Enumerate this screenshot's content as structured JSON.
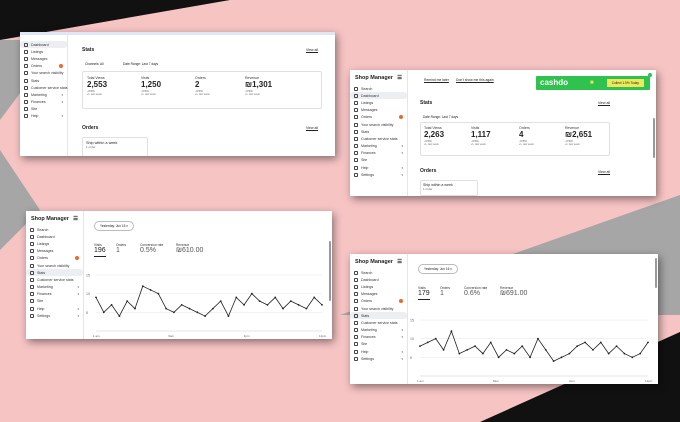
{
  "colors": {
    "bg_pink": "#f7c4c4",
    "bg_dark": "#111111",
    "bg_gray": "#a6a6a6",
    "banner_green": "#2fc24f",
    "banner_yellow": "#f0e85a",
    "badge_orange": "#e96a2a"
  },
  "s1": {
    "nav": [
      "Dashboard",
      "Listings",
      "Messages",
      "Orders",
      "Your search visibility",
      "Stats",
      "Customer service stats",
      "Marketing",
      "Finances",
      "Site",
      "Help"
    ],
    "stats_title": "Stats",
    "view_all": "View all",
    "channels": "Channels: All",
    "date_range": "Date Range: Last 7 days",
    "cards": [
      {
        "label": "Total Views",
        "value": "2,553",
        "pct": "-3.5%",
        "sub": "vs. last week"
      },
      {
        "label": "Visits",
        "value": "1,250",
        "pct": "-3.5%",
        "sub": "vs. last week"
      },
      {
        "label": "Orders",
        "value": "2",
        "pct": "-3.5%",
        "sub": "vs. last week"
      },
      {
        "label": "Revenue",
        "value": "₪1,301",
        "pct": "-3.5%",
        "sub": "vs. last week"
      }
    ],
    "orders_title": "Orders",
    "orders_view_all": "View all",
    "ship_title": "Ship within a week",
    "ship_sub": "1 order"
  },
  "s2": {
    "app_title": "Shop Manager",
    "nav": [
      "Search",
      "Dashboard",
      "Listings",
      "Messages",
      "Orders",
      "Your search visibility",
      "Stats",
      "Customer service stats",
      "Marketing",
      "Finances",
      "Site",
      "Help",
      "Settings"
    ],
    "remind": "Remind me later",
    "dont_show": "Don't show me this again",
    "banner_brand": "cashdo",
    "banner_btn": "Collect 1.5% Today",
    "stats_title": "Stats",
    "view_all": "View all",
    "date_range": "Date Range: Last 7 days",
    "cards": [
      {
        "label": "Total Views",
        "value": "2,263",
        "pct": "-3.5%",
        "sub": "vs. last week"
      },
      {
        "label": "Visits",
        "value": "1,117",
        "pct": "-3.5%",
        "sub": "vs. last week"
      },
      {
        "label": "Orders",
        "value": "4",
        "pct": "-3.5%",
        "sub": "vs. last week"
      },
      {
        "label": "Revenue",
        "value": "₪2,651",
        "pct": "-3.5%",
        "sub": "vs. last week"
      }
    ],
    "orders_title": "Orders",
    "orders_view_all": "View all",
    "ship_title": "Ship within a week",
    "ship_sub": "1 order"
  },
  "s3": {
    "app_title": "Shop Manager",
    "nav": [
      "Search",
      "Dashboard",
      "Listings",
      "Messages",
      "Orders",
      "Your search visibility",
      "Stats",
      "Customer service stats",
      "Marketing",
      "Finances",
      "Site",
      "Help",
      "Settings"
    ],
    "date_select": "Yesterday: Jun 15",
    "metrics": [
      {
        "label": "Visits",
        "value": "196"
      },
      {
        "label": "Orders",
        "value": "1"
      },
      {
        "label": "Conversion rate",
        "value": "0.5%"
      },
      {
        "label": "Revenue",
        "value": "₪610.00"
      }
    ],
    "chart_data": {
      "type": "line",
      "y_ticks": [
        "15",
        "10",
        "5"
      ],
      "x_ticks": [
        "1 am",
        "",
        "6am",
        "",
        "2pm",
        "",
        "11pm"
      ],
      "ylim": [
        0,
        15
      ],
      "values": [
        9,
        5,
        7,
        4,
        8,
        6,
        12,
        11,
        10,
        6,
        5,
        7,
        6,
        5,
        4,
        6,
        8,
        4,
        9,
        7,
        10,
        8,
        7,
        9,
        6,
        8,
        7,
        6,
        9,
        7
      ]
    }
  },
  "s4": {
    "app_title": "Shop Manager",
    "nav": [
      "Search",
      "Dashboard",
      "Listings",
      "Messages",
      "Orders",
      "Your search visibility",
      "Stats",
      "Customer service stats",
      "Marketing",
      "Finances",
      "Site",
      "Help",
      "Settings"
    ],
    "date_select": "Yesterday: Jun 16",
    "metrics": [
      {
        "label": "Visits",
        "value": "179"
      },
      {
        "label": "Orders",
        "value": "1"
      },
      {
        "label": "Conversion rate",
        "value": "0.6%"
      },
      {
        "label": "Revenue",
        "value": "₪691.00"
      }
    ],
    "chart_data": {
      "type": "line",
      "y_ticks": [
        "15",
        "10",
        "5"
      ],
      "x_ticks": [
        "1 am",
        "",
        "6am",
        "",
        "2pm",
        "",
        "11pm"
      ],
      "ylim": [
        0,
        15
      ],
      "values": [
        8,
        9,
        10,
        7,
        12,
        6,
        7,
        8,
        6,
        9,
        5,
        7,
        6,
        8,
        5,
        10,
        7,
        4,
        5,
        6,
        8,
        9,
        7,
        9,
        6,
        8,
        6,
        5,
        6,
        9
      ]
    }
  }
}
